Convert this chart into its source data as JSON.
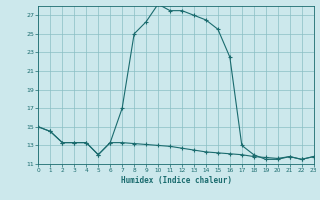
{
  "xlabel": "Humidex (Indice chaleur)",
  "background_color": "#cce8ec",
  "grid_color": "#8bbfc4",
  "line_color": "#1a6b6e",
  "x_min": 0,
  "x_max": 23,
  "y_min": 11,
  "y_max": 28,
  "yticks": [
    11,
    13,
    15,
    17,
    19,
    21,
    23,
    25,
    27
  ],
  "xticks": [
    0,
    1,
    2,
    3,
    4,
    5,
    6,
    7,
    8,
    9,
    10,
    11,
    12,
    13,
    14,
    15,
    16,
    17,
    18,
    19,
    20,
    21,
    22,
    23
  ],
  "series1_x": [
    0,
    1,
    2,
    3,
    4,
    5,
    6,
    7,
    8,
    9,
    10,
    11,
    12,
    13,
    14,
    15,
    16,
    17,
    18,
    19,
    20,
    21,
    22,
    23
  ],
  "series1_y": [
    15.0,
    14.5,
    13.3,
    13.3,
    13.3,
    12.0,
    13.3,
    17.0,
    25.0,
    26.3,
    28.2,
    27.5,
    27.5,
    27.0,
    26.5,
    25.5,
    22.5,
    13.0,
    12.0,
    11.5,
    11.5,
    11.8,
    11.5,
    11.8
  ],
  "series2_x": [
    0,
    1,
    2,
    3,
    4,
    5,
    6,
    7,
    8,
    9,
    10,
    11,
    12,
    13,
    14,
    15,
    16,
    17,
    18,
    19,
    20,
    21,
    22,
    23
  ],
  "series2_y": [
    15.0,
    14.5,
    13.3,
    13.3,
    13.3,
    12.0,
    13.3,
    13.3,
    13.2,
    13.1,
    13.0,
    12.9,
    12.7,
    12.5,
    12.3,
    12.2,
    12.1,
    12.0,
    11.8,
    11.7,
    11.6,
    11.8,
    11.5,
    11.8
  ]
}
